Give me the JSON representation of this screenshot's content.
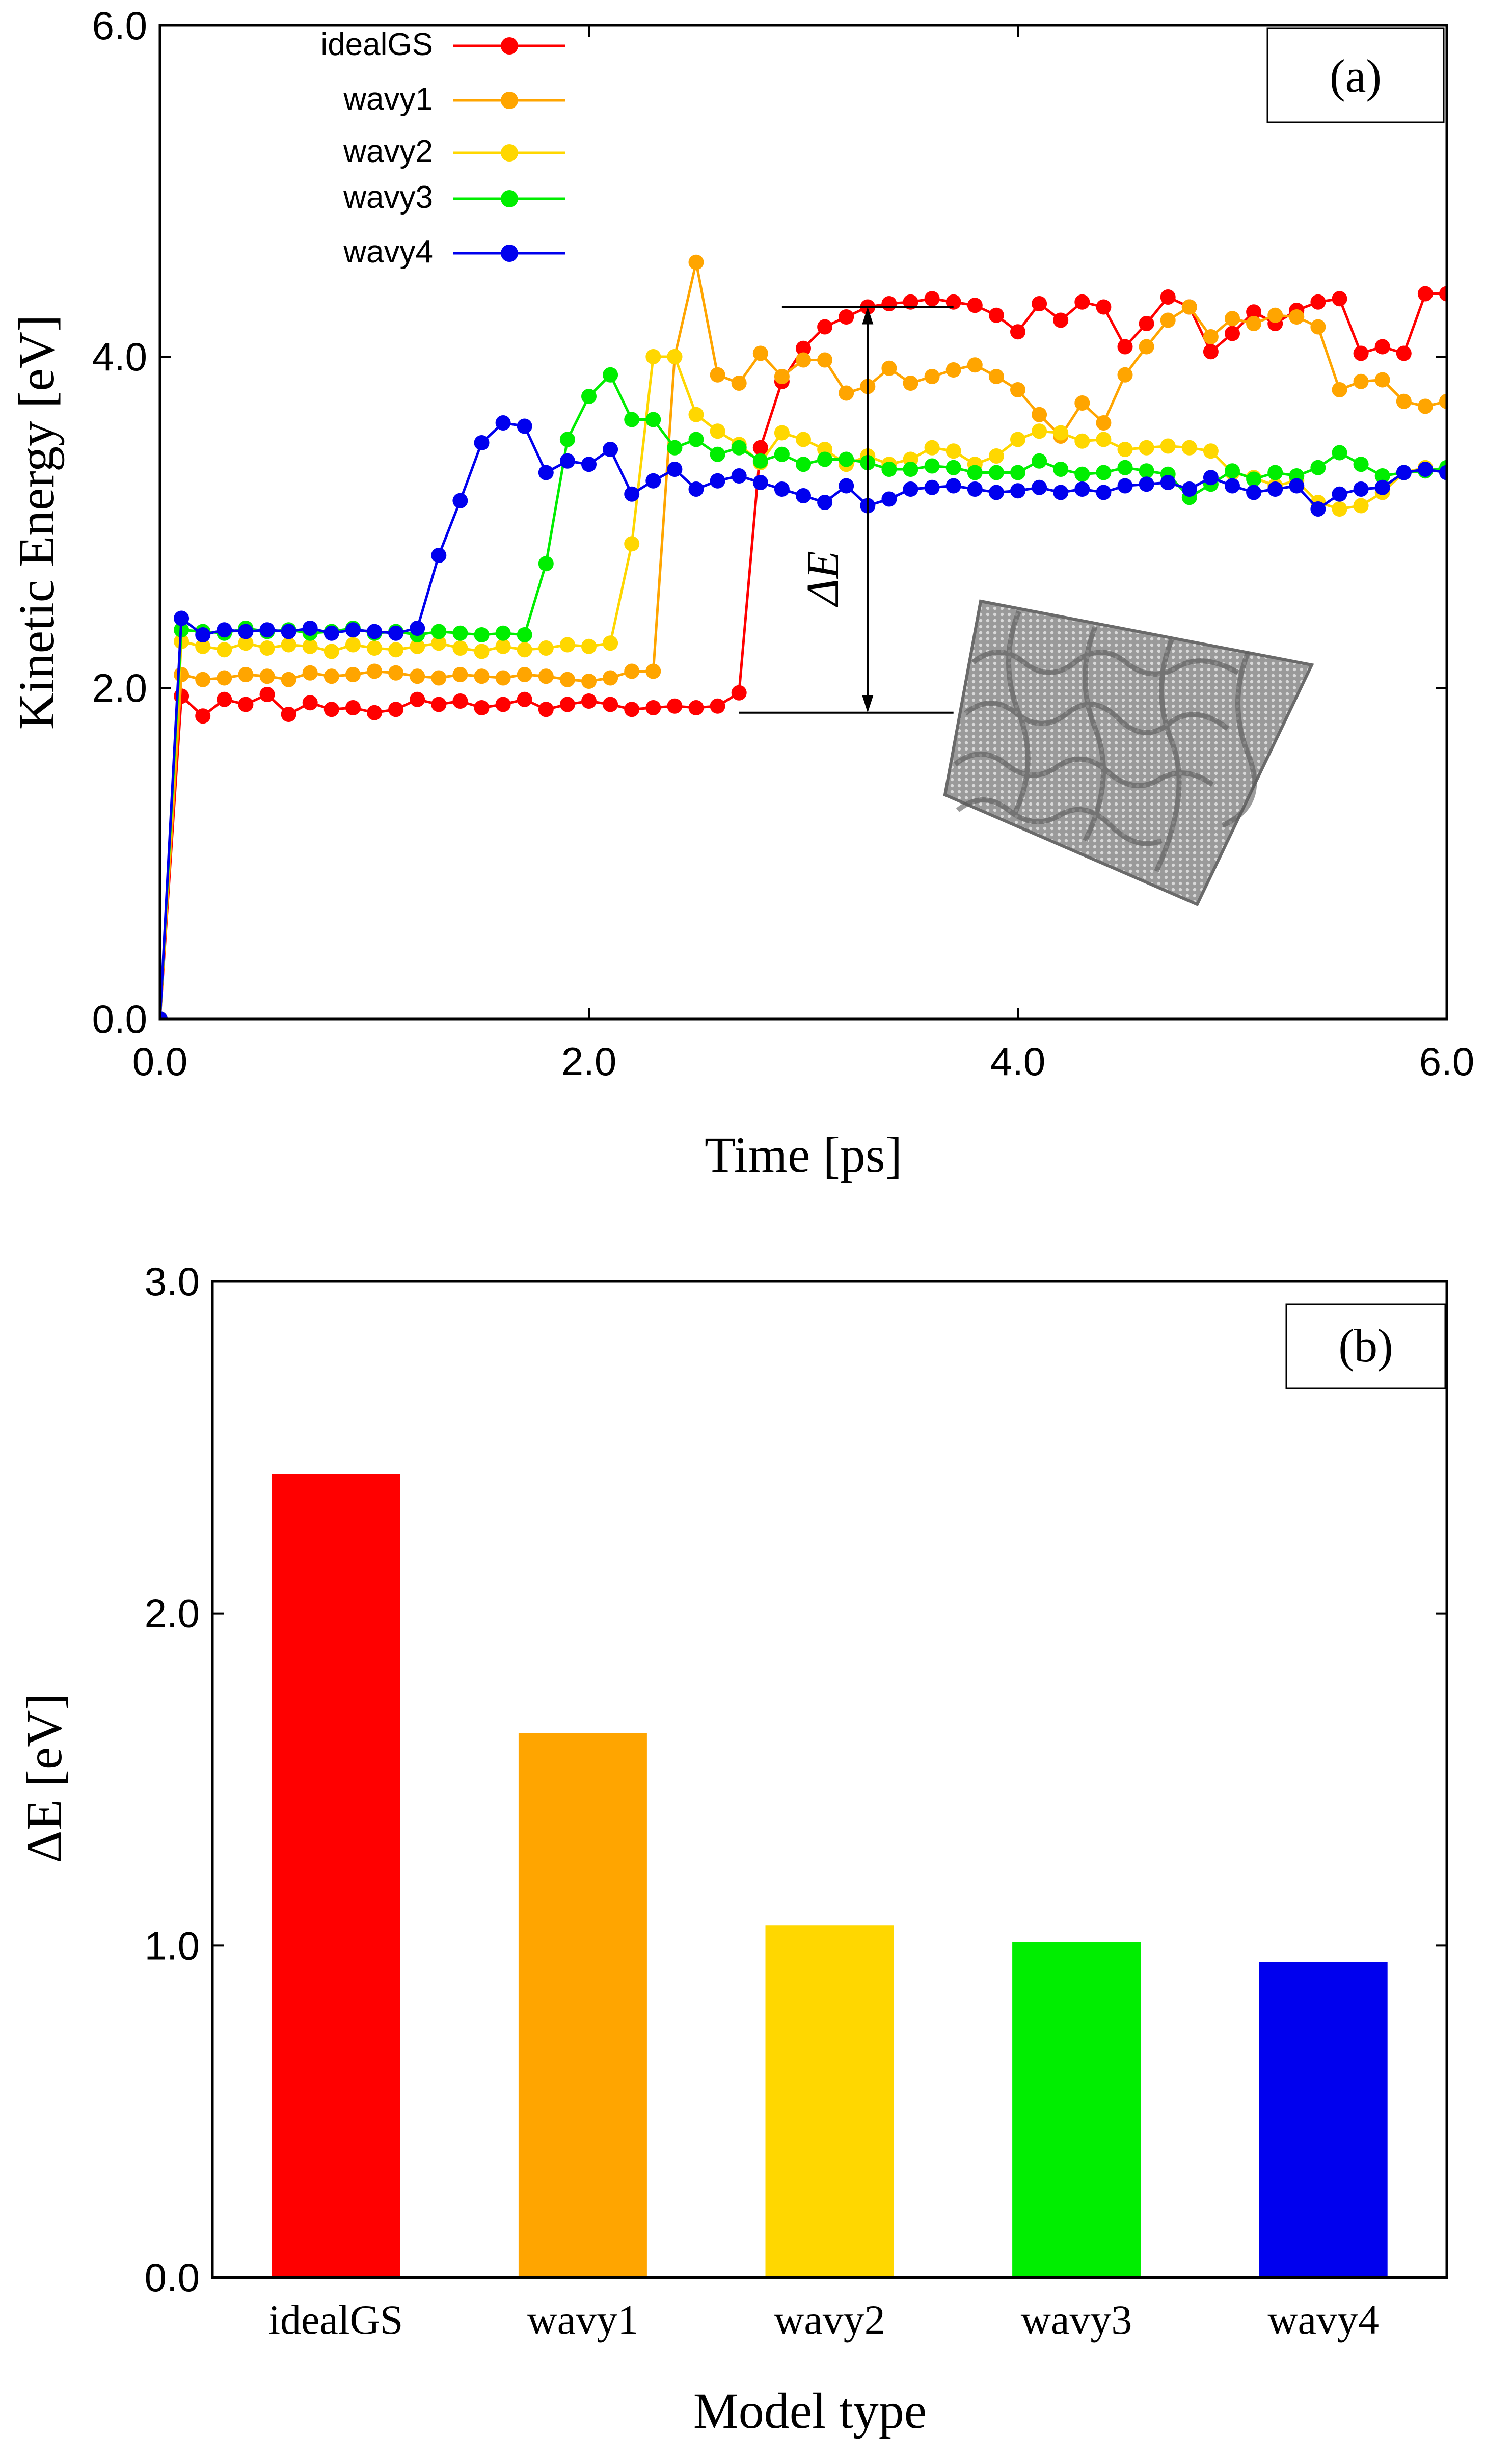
{
  "colors": {
    "idealGS": "#ff0000",
    "wavy1": "#ffa500",
    "wavy2": "#ffd700",
    "wavy3": "#00ee00",
    "wavy4": "#0000ee"
  },
  "chart_data": [
    {
      "type": "line",
      "panel_label": "(a)",
      "title": "",
      "xlabel": "Time [ps]",
      "ylabel": "Kinetic Energy [eV]",
      "xlim": [
        0,
        6
      ],
      "ylim": [
        0,
        6
      ],
      "xticks": [
        "0.0",
        "2.0",
        "4.0",
        "6.0"
      ],
      "yticks": [
        "0.0",
        "2.0",
        "4.0",
        "6.0"
      ],
      "legend_position": "top-left",
      "annotation": {
        "label": "ΔE",
        "from_y": 1.85,
        "to_y": 4.3,
        "upper_x_range": [
          2.9,
          3.7
        ],
        "lower_x_range": [
          2.7,
          3.7
        ],
        "arrow_x": 3.3
      },
      "inset": "wavy-graphene-sheet",
      "x": [
        0.0,
        0.1,
        0.2,
        0.3,
        0.4,
        0.5,
        0.6,
        0.7,
        0.8,
        0.9,
        1.0,
        1.1,
        1.2,
        1.3,
        1.4,
        1.5,
        1.6,
        1.7,
        1.8,
        1.9,
        2.0,
        2.1,
        2.2,
        2.3,
        2.4,
        2.5,
        2.6,
        2.7,
        2.8,
        2.9,
        3.0,
        3.1,
        3.2,
        3.3,
        3.4,
        3.5,
        3.6,
        3.7,
        3.8,
        3.9,
        4.0,
        4.1,
        4.2,
        4.3,
        4.4,
        4.5,
        4.6,
        4.7,
        4.8,
        4.9,
        5.0,
        5.1,
        5.2,
        5.3,
        5.4,
        5.5,
        5.6,
        5.7,
        5.8,
        5.9,
        6.0
      ],
      "series": [
        {
          "name": "idealGS",
          "values": [
            0.0,
            1.95,
            1.83,
            1.93,
            1.9,
            1.96,
            1.84,
            1.91,
            1.87,
            1.88,
            1.85,
            1.87,
            1.93,
            1.9,
            1.92,
            1.88,
            1.9,
            1.93,
            1.87,
            1.9,
            1.92,
            1.9,
            1.87,
            1.88,
            1.89,
            1.88,
            1.89,
            1.97,
            3.45,
            3.85,
            4.05,
            4.18,
            4.24,
            4.3,
            4.32,
            4.33,
            4.35,
            4.33,
            4.31,
            4.25,
            4.15,
            4.32,
            4.22,
            4.33,
            4.3,
            4.06,
            4.2,
            4.36,
            4.3,
            4.03,
            4.14,
            4.27,
            4.2,
            4.28,
            4.33,
            4.35,
            4.02,
            4.06,
            4.02,
            4.38,
            4.38
          ]
        },
        {
          "name": "wavy1",
          "values": [
            0.0,
            2.08,
            2.05,
            2.06,
            2.08,
            2.07,
            2.05,
            2.09,
            2.07,
            2.08,
            2.1,
            2.09,
            2.07,
            2.06,
            2.08,
            2.07,
            2.06,
            2.08,
            2.07,
            2.05,
            2.04,
            2.06,
            2.1,
            2.1,
            4.0,
            4.57,
            3.89,
            3.84,
            4.02,
            3.88,
            3.98,
            3.98,
            3.78,
            3.82,
            3.93,
            3.84,
            3.88,
            3.92,
            3.95,
            3.88,
            3.8,
            3.65,
            3.52,
            3.72,
            3.6,
            3.89,
            4.06,
            4.22,
            4.3,
            4.12,
            4.23,
            4.2,
            4.25,
            4.24,
            4.18,
            3.8,
            3.85,
            3.86,
            3.73,
            3.7,
            3.73
          ]
        },
        {
          "name": "wavy2",
          "values": [
            0.0,
            2.28,
            2.25,
            2.23,
            2.27,
            2.24,
            2.26,
            2.25,
            2.22,
            2.26,
            2.24,
            2.23,
            2.25,
            2.27,
            2.24,
            2.22,
            2.25,
            2.23,
            2.24,
            2.26,
            2.25,
            2.27,
            2.87,
            4.0,
            4.0,
            3.65,
            3.55,
            3.47,
            3.36,
            3.54,
            3.5,
            3.44,
            3.35,
            3.4,
            3.35,
            3.38,
            3.45,
            3.43,
            3.35,
            3.4,
            3.5,
            3.55,
            3.54,
            3.49,
            3.5,
            3.44,
            3.45,
            3.46,
            3.45,
            3.43,
            3.3,
            3.27,
            3.22,
            3.25,
            3.12,
            3.08,
            3.1,
            3.18,
            3.3,
            3.33,
            3.3
          ]
        },
        {
          "name": "wavy3",
          "values": [
            0.0,
            2.35,
            2.34,
            2.33,
            2.36,
            2.34,
            2.35,
            2.33,
            2.34,
            2.36,
            2.33,
            2.34,
            2.32,
            2.34,
            2.33,
            2.32,
            2.33,
            2.32,
            2.75,
            3.5,
            3.76,
            3.89,
            3.62,
            3.62,
            3.45,
            3.5,
            3.41,
            3.45,
            3.37,
            3.41,
            3.35,
            3.38,
            3.38,
            3.36,
            3.32,
            3.32,
            3.34,
            3.33,
            3.3,
            3.3,
            3.3,
            3.37,
            3.32,
            3.29,
            3.3,
            3.33,
            3.31,
            3.29,
            3.15,
            3.23,
            3.31,
            3.26,
            3.3,
            3.28,
            3.33,
            3.42,
            3.35,
            3.28,
            3.3,
            3.31,
            3.33
          ]
        },
        {
          "name": "wavy4",
          "values": [
            0.0,
            2.42,
            2.32,
            2.35,
            2.34,
            2.35,
            2.34,
            2.36,
            2.33,
            2.35,
            2.34,
            2.33,
            2.36,
            2.8,
            3.13,
            3.48,
            3.6,
            3.58,
            3.3,
            3.37,
            3.35,
            3.44,
            3.17,
            3.25,
            3.32,
            3.2,
            3.25,
            3.28,
            3.24,
            3.2,
            3.16,
            3.12,
            3.22,
            3.1,
            3.14,
            3.2,
            3.21,
            3.22,
            3.2,
            3.18,
            3.19,
            3.21,
            3.18,
            3.2,
            3.18,
            3.22,
            3.23,
            3.24,
            3.2,
            3.27,
            3.22,
            3.18,
            3.2,
            3.22,
            3.08,
            3.17,
            3.2,
            3.21,
            3.3,
            3.32,
            3.3
          ]
        }
      ]
    },
    {
      "type": "bar",
      "panel_label": "(b)",
      "title": "",
      "xlabel": "Model type",
      "ylabel": "ΔE [eV]",
      "ylim": [
        0,
        3
      ],
      "yticks": [
        "0.0",
        "1.0",
        "2.0",
        "3.0"
      ],
      "categories": [
        "idealGS",
        "wavy1",
        "wavy2",
        "wavy3",
        "wavy4"
      ],
      "values": [
        2.42,
        1.64,
        1.06,
        1.01,
        0.95
      ]
    }
  ]
}
